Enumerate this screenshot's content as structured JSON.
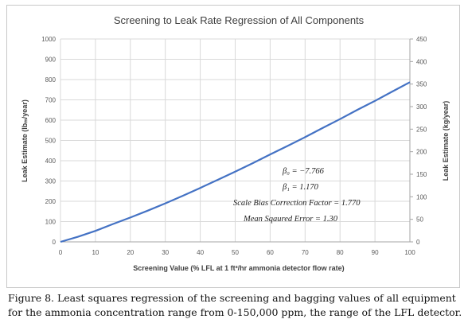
{
  "chart_data": {
    "type": "line",
    "title": "Screening to Leak Rate Regression of All Components",
    "xlabel": "Screening Value (% LFL at 1 ft³/hr ammonia detector flow rate)",
    "ylabel": "Leak Estimate (lbₘ/year)",
    "y2label": "Leak Estimate (kg/year)",
    "xlim": [
      0,
      100
    ],
    "ylim": [
      0,
      1000
    ],
    "y2lim": [
      0,
      450
    ],
    "x_ticks": [
      "0",
      "10",
      "20",
      "30",
      "40",
      "50",
      "60",
      "70",
      "80",
      "90",
      "100"
    ],
    "y_ticks": [
      "0",
      "100",
      "200",
      "300",
      "400",
      "500",
      "600",
      "700",
      "800",
      "900",
      "1000"
    ],
    "y2_ticks": [
      "0",
      "50",
      "100",
      "150",
      "200",
      "250",
      "300",
      "350",
      "400",
      "450"
    ],
    "grid": true,
    "series": [
      {
        "color": "#4472c4",
        "x": [
          0,
          5,
          10,
          15,
          20,
          25,
          30,
          35,
          40,
          45,
          50,
          55,
          60,
          65,
          70,
          75,
          80,
          85,
          90,
          95,
          100
        ],
        "y": [
          0,
          25,
          54,
          88,
          120,
          154,
          190,
          227,
          266,
          306,
          346,
          388,
          431,
          473,
          516,
          561,
          605,
          651,
          695,
          741,
          787
        ]
      }
    ],
    "annotations": [
      "β₀ = −7.766",
      "β₁ = 1.170",
      "Scale Bias Correction Factor = 1.770",
      "Mean Sqaured Error = 1.30"
    ]
  },
  "caption": "Figure 8. Least squares regression of the screening and bagging values of all equipment for the ammonia concentration range from 0-150,000 ppm, the range of the LFL detector."
}
